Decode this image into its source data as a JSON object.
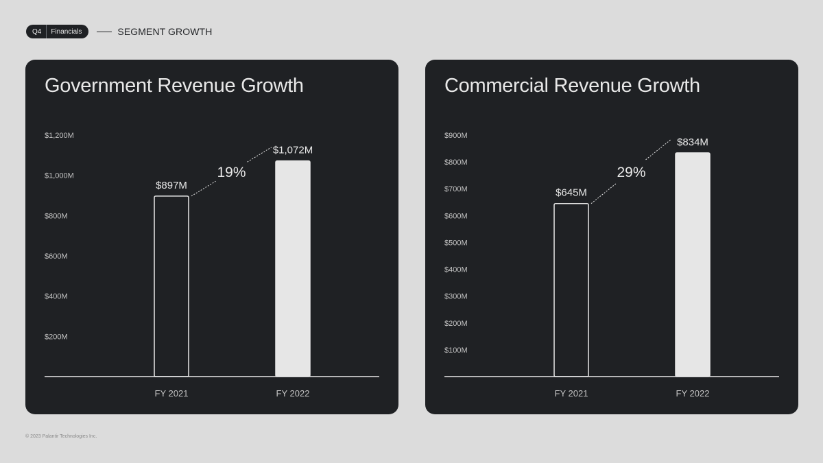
{
  "header": {
    "quarter": "Q4",
    "section": "Financials",
    "title": "SEGMENT GROWTH"
  },
  "footer": {
    "copyright": "© 2023 Palantir Technologies Inc."
  },
  "colors": {
    "page_bg": "#dcdcdc",
    "card_bg": "#1f2124",
    "bar_fill": "#e6e6e6",
    "text": "#e8e8e8",
    "tick_text": "#c4c4c4"
  },
  "chart_data": [
    {
      "type": "bar",
      "title": "Government Revenue Growth",
      "categories": [
        "FY 2021",
        "FY 2022"
      ],
      "values": [
        897,
        1072
      ],
      "value_labels": [
        "$897M",
        "$1,072M"
      ],
      "growth_label": "19%",
      "ylim": [
        0,
        1200
      ],
      "yticks": [
        200,
        400,
        600,
        800,
        1000,
        1200
      ],
      "ytick_labels": [
        "$200M",
        "$400M",
        "$600M",
        "$800M",
        "$1,000M",
        "$1,200M"
      ],
      "xlabel": "",
      "ylabel": "",
      "grid": false
    },
    {
      "type": "bar",
      "title": "Commercial Revenue Growth",
      "categories": [
        "FY 2021",
        "FY 2022"
      ],
      "values": [
        645,
        834
      ],
      "value_labels": [
        "$645M",
        "$834M"
      ],
      "growth_label": "29%",
      "ylim": [
        0,
        900
      ],
      "yticks": [
        100,
        200,
        300,
        400,
        500,
        600,
        700,
        800,
        900
      ],
      "ytick_labels": [
        "$100M",
        "$200M",
        "$300M",
        "$400M",
        "$500M",
        "$600M",
        "$700M",
        "$800M",
        "$900M"
      ],
      "xlabel": "",
      "ylabel": "",
      "grid": false
    }
  ]
}
